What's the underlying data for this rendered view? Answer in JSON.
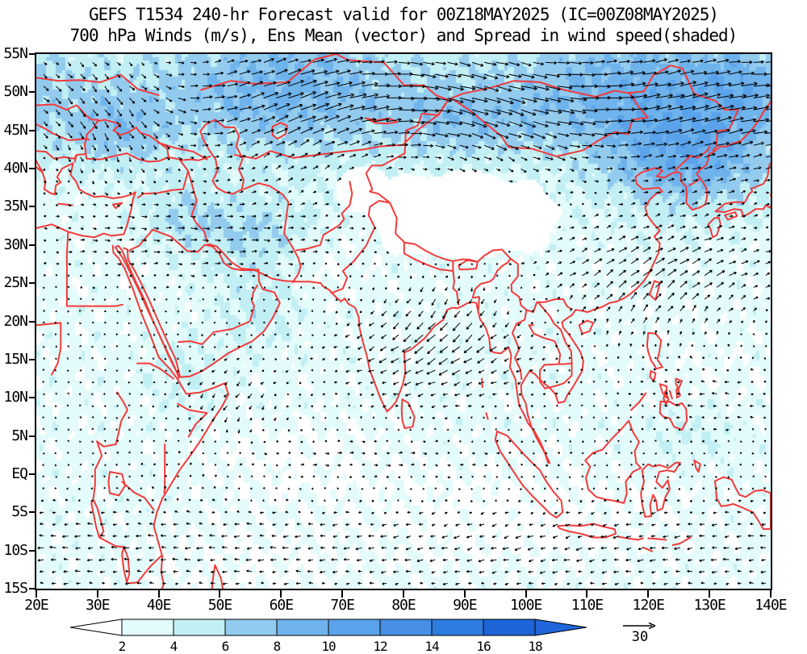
{
  "title": {
    "line1": "GEFS T1534 240-hr Forecast valid for 00Z18MAY2025 (IC=00Z08MAY2025)",
    "line2": "700 hPa Winds (m/s), Ens Mean (vector) and Spread in wind speed(shaded)"
  },
  "axes": {
    "lat_ticks": [
      {
        "label": "55N",
        "value": 55
      },
      {
        "label": "50N",
        "value": 50
      },
      {
        "label": "45N",
        "value": 45
      },
      {
        "label": "40N",
        "value": 40
      },
      {
        "label": "35N",
        "value": 35
      },
      {
        "label": "30N",
        "value": 30
      },
      {
        "label": "25N",
        "value": 25
      },
      {
        "label": "20N",
        "value": 20
      },
      {
        "label": "15N",
        "value": 15
      },
      {
        "label": "10N",
        "value": 10
      },
      {
        "label": "5N",
        "value": 5
      },
      {
        "label": "EQ",
        "value": 0
      },
      {
        "label": "5S",
        "value": -5
      },
      {
        "label": "10S",
        "value": -10
      },
      {
        "label": "15S",
        "value": -15
      }
    ],
    "lon_ticks": [
      {
        "label": "20E",
        "value": 20
      },
      {
        "label": "30E",
        "value": 30
      },
      {
        "label": "40E",
        "value": 40
      },
      {
        "label": "50E",
        "value": 50
      },
      {
        "label": "60E",
        "value": 60
      },
      {
        "label": "70E",
        "value": 70
      },
      {
        "label": "80E",
        "value": 80
      },
      {
        "label": "90E",
        "value": 90
      },
      {
        "label": "100E",
        "value": 100
      },
      {
        "label": "110E",
        "value": 110
      },
      {
        "label": "120E",
        "value": 120
      },
      {
        "label": "130E",
        "value": 130
      },
      {
        "label": "140E",
        "value": 140
      }
    ],
    "lon_range": [
      20,
      140
    ],
    "lat_range": [
      -15,
      55
    ]
  },
  "colorbar": {
    "tick_labels": [
      "2",
      "4",
      "6",
      "8",
      "10",
      "12",
      "14",
      "16",
      "18"
    ],
    "levels": [
      2,
      4,
      6,
      8,
      10,
      12,
      14,
      16,
      18
    ],
    "segment_colors": [
      "#e4fbfb",
      "#c2eff4",
      "#93cbef",
      "#6fb3ec",
      "#5aa3ea",
      "#478fe5",
      "#2e7ce0",
      "#1c64d8"
    ],
    "below_min_color": "#ffffff",
    "above_max_color": "#2066da",
    "units": "m/s"
  },
  "reference_vector": {
    "label": "30",
    "value_ms": 30
  },
  "map_style": {
    "coastline_color": "#f23a3a",
    "vector_color": "#000000",
    "frame_color": "#000000"
  },
  "chart_data": {
    "type": "heatmap",
    "title": "GEFS T1534 240-hr Forecast valid for 00Z18MAY2025 (IC=00Z08MAY2025)",
    "subtitle": "700 hPa Winds (m/s), Ens Mean (vector) and Spread in wind speed(shaded)",
    "x_ticks": [
      "20E",
      "30E",
      "40E",
      "50E",
      "60E",
      "70E",
      "80E",
      "90E",
      "100E",
      "110E",
      "120E",
      "130E",
      "140E"
    ],
    "y_ticks": [
      "55N",
      "50N",
      "45N",
      "40N",
      "35N",
      "30N",
      "25N",
      "20N",
      "15N",
      "10N",
      "5N",
      "EQ",
      "5S",
      "10S",
      "15S"
    ],
    "xlim": [
      20,
      140
    ],
    "ylim": [
      -15,
      55
    ],
    "shaded_variable": "ensemble spread of 700 hPa wind speed (m/s)",
    "vector_variable": "700 hPa ensemble mean wind (vectors)",
    "shading_levels": [
      2,
      4,
      6,
      8,
      10,
      12,
      14,
      16,
      18
    ],
    "vector_reference_ms": 30,
    "masked_region": "Tibetan Plateau shown white (~73E-105E, 28N-40N)",
    "approx_spread_grid": {
      "lons": [
        25,
        35,
        45,
        55,
        65,
        75,
        85,
        95,
        105,
        115,
        125,
        135
      ],
      "lats": [
        50,
        40,
        30,
        20,
        10,
        0,
        -10
      ],
      "values_ms": [
        [
          8,
          8,
          8,
          7,
          7,
          8,
          9,
          9,
          8,
          8,
          10,
          11
        ],
        [
          7,
          7,
          8,
          6,
          5,
          3,
          4,
          8,
          10,
          11,
          12,
          12
        ],
        [
          5,
          6,
          7,
          8,
          5,
          2,
          1,
          2,
          5,
          6,
          7,
          8
        ],
        [
          4,
          4,
          5,
          7,
          5,
          4,
          4,
          4,
          4,
          4,
          4,
          5
        ],
        [
          3,
          4,
          6,
          5,
          4,
          4,
          4,
          3,
          3,
          3,
          3,
          4
        ],
        [
          2,
          3,
          4,
          3,
          3,
          3,
          2,
          2,
          2,
          3,
          3,
          3
        ],
        [
          2,
          3,
          3,
          3,
          3,
          3,
          2,
          3,
          2,
          2,
          2,
          3
        ]
      ]
    }
  }
}
